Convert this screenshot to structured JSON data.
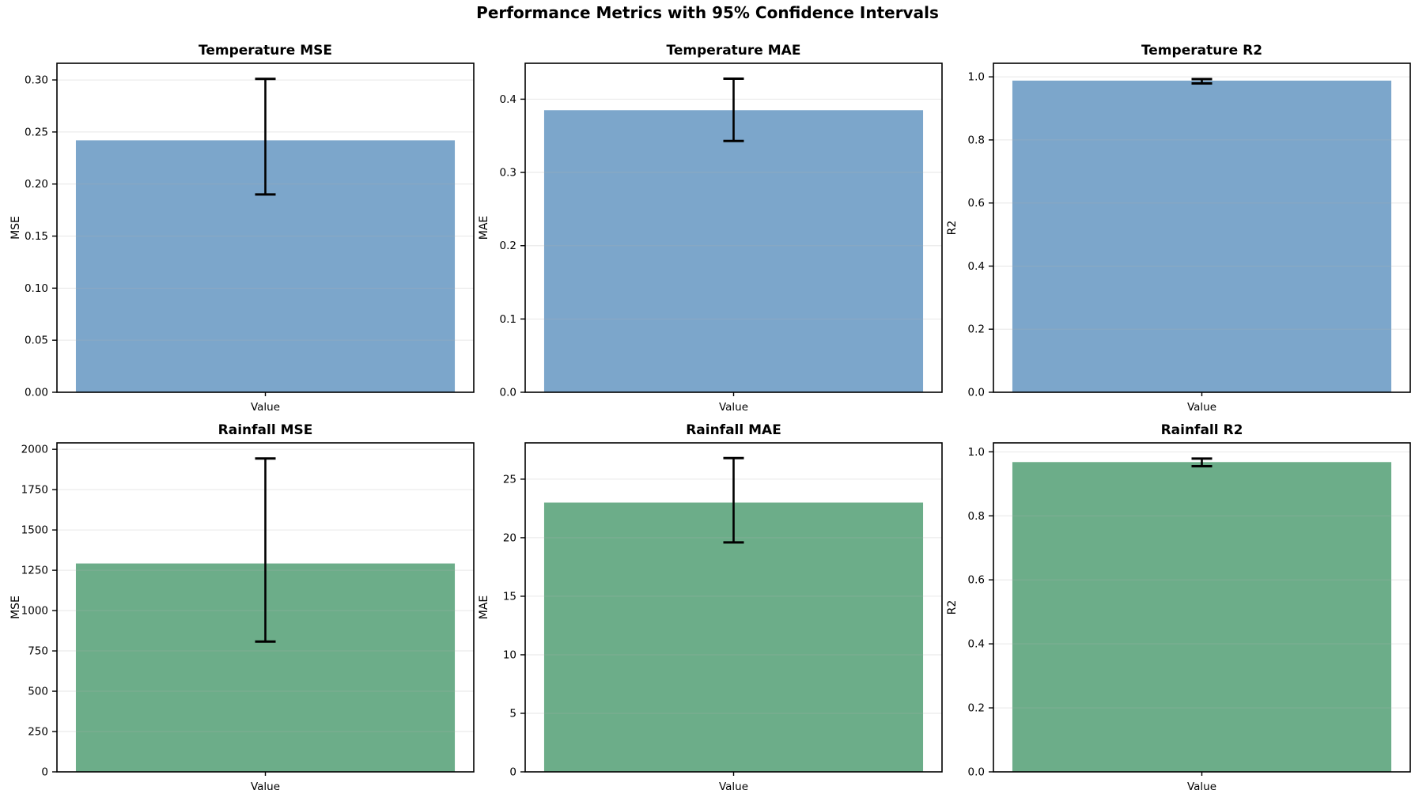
{
  "figure": {
    "suptitle": "Performance Metrics with 95% Confidence Intervals",
    "background_color": "#ffffff",
    "spine_color": "#000000",
    "grid_color": "#b0b0b0",
    "errorbar_color": "#000000",
    "temperature_bar_color": "#7ca6cb",
    "rainfall_bar_color": "#6cad89"
  },
  "chart_data": [
    {
      "type": "bar",
      "title": "Temperature MSE",
      "ylabel": "MSE",
      "categories": [
        "Value"
      ],
      "values": [
        0.242
      ],
      "ci_low": [
        0.19
      ],
      "ci_high": [
        0.301
      ],
      "ylim": [
        0,
        0.316
      ],
      "yticks": [
        0,
        0.05,
        0.1,
        0.15,
        0.2,
        0.25,
        0.3
      ],
      "ytick_labels": [
        "0.00",
        "0.05",
        "0.10",
        "0.15",
        "0.20",
        "0.25",
        "0.30"
      ],
      "xtick_labels": [
        "Value"
      ],
      "bar_color": "#7ca6cb",
      "grid": true,
      "legend": false
    },
    {
      "type": "bar",
      "title": "Temperature MAE",
      "ylabel": "MAE",
      "categories": [
        "Value"
      ],
      "values": [
        0.385
      ],
      "ci_low": [
        0.343
      ],
      "ci_high": [
        0.428
      ],
      "ylim": [
        0,
        0.449
      ],
      "yticks": [
        0,
        0.1,
        0.2,
        0.3,
        0.4
      ],
      "ytick_labels": [
        "0.0",
        "0.1",
        "0.2",
        "0.3",
        "0.4"
      ],
      "xtick_labels": [
        "Value"
      ],
      "bar_color": "#7ca6cb",
      "grid": true,
      "legend": false
    },
    {
      "type": "bar",
      "title": "Temperature R2",
      "ylabel": "R2",
      "categories": [
        "Value"
      ],
      "values": [
        0.988
      ],
      "ci_low": [
        0.979
      ],
      "ci_high": [
        0.993
      ],
      "ylim": [
        0,
        1.043
      ],
      "yticks": [
        0,
        0.2,
        0.4,
        0.6,
        0.8,
        1.0
      ],
      "ytick_labels": [
        "0.0",
        "0.2",
        "0.4",
        "0.6",
        "0.8",
        "1.0"
      ],
      "xtick_labels": [
        "Value"
      ],
      "bar_color": "#7ca6cb",
      "grid": true,
      "legend": false
    },
    {
      "type": "bar",
      "title": "Rainfall MSE",
      "ylabel": "MSE",
      "categories": [
        "Value"
      ],
      "values": [
        1292
      ],
      "ci_low": [
        808
      ],
      "ci_high": [
        1943
      ],
      "ylim": [
        0,
        2040
      ],
      "yticks": [
        0,
        250,
        500,
        750,
        1000,
        1250,
        1500,
        1750,
        2000
      ],
      "ytick_labels": [
        "0",
        "250",
        "500",
        "750",
        "1000",
        "1250",
        "1500",
        "1750",
        "2000"
      ],
      "xtick_labels": [
        "Value"
      ],
      "bar_color": "#6cad89",
      "grid": true,
      "legend": false
    },
    {
      "type": "bar",
      "title": "Rainfall MAE",
      "ylabel": "MAE",
      "categories": [
        "Value"
      ],
      "values": [
        23.0
      ],
      "ci_low": [
        19.6
      ],
      "ci_high": [
        26.8
      ],
      "ylim": [
        0,
        28.1
      ],
      "yticks": [
        0,
        5,
        10,
        15,
        20,
        25
      ],
      "ytick_labels": [
        "0",
        "5",
        "10",
        "15",
        "20",
        "25"
      ],
      "xtick_labels": [
        "Value"
      ],
      "bar_color": "#6cad89",
      "grid": true,
      "legend": false
    },
    {
      "type": "bar",
      "title": "Rainfall R2",
      "ylabel": "R2",
      "categories": [
        "Value"
      ],
      "values": [
        0.968
      ],
      "ci_low": [
        0.955
      ],
      "ci_high": [
        0.979
      ],
      "ylim": [
        0,
        1.028
      ],
      "yticks": [
        0,
        0.2,
        0.4,
        0.6,
        0.8,
        1.0
      ],
      "ytick_labels": [
        "0.0",
        "0.2",
        "0.4",
        "0.6",
        "0.8",
        "1.0"
      ],
      "xtick_labels": [
        "Value"
      ],
      "bar_color": "#6cad89",
      "grid": true,
      "legend": false
    }
  ]
}
